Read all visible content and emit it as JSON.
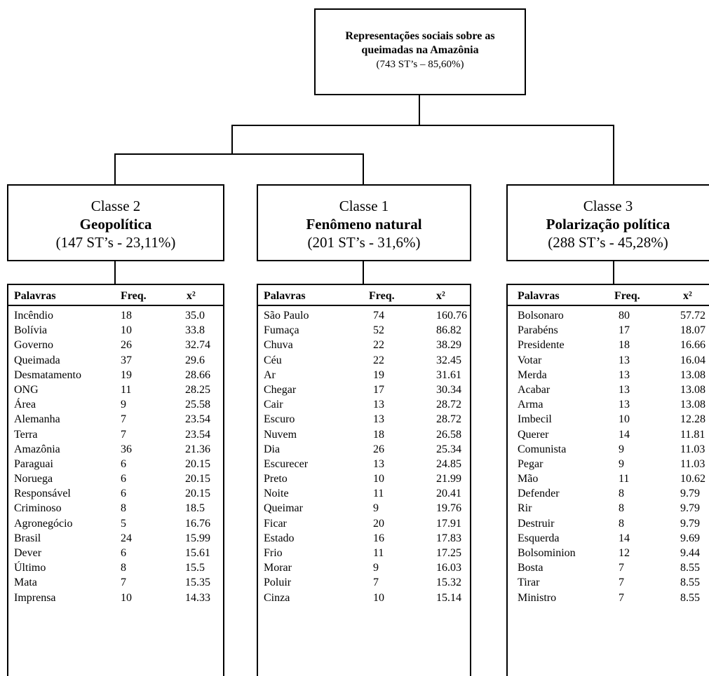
{
  "root": {
    "line1": "Representações sociais sobre as",
    "line2": "queimadas na Amazônia",
    "line3": "(743 ST’s – 85,60%)"
  },
  "classes": [
    {
      "line1": "Classe 2",
      "line2": "Geopolítica",
      "line3": "(147 ST’s - 23,11%)"
    },
    {
      "line1": "Classe 1",
      "line2": "Fenômeno natural",
      "line3": "(201 ST’s - 31,6%)"
    },
    {
      "line1": "Classe 3",
      "line2": "Polarização política",
      "line3": "(288 ST’s - 45,28%)"
    }
  ],
  "headers": {
    "words": "Palavras",
    "freq": "Freq.",
    "chi": "x²"
  },
  "tables": [
    [
      [
        "Incêndio",
        "18",
        "35.0"
      ],
      [
        "Bolívia",
        "10",
        "33.8"
      ],
      [
        "Governo",
        "26",
        "32.74"
      ],
      [
        "Queimada",
        "37",
        "29.6"
      ],
      [
        "Desmatamento",
        "19",
        "28.66"
      ],
      [
        "ONG",
        "11",
        "28.25"
      ],
      [
        "Área",
        "9",
        "25.58"
      ],
      [
        "Alemanha",
        "7",
        "23.54"
      ],
      [
        "Terra",
        "7",
        "23.54"
      ],
      [
        "Amazônia",
        "36",
        "21.36"
      ],
      [
        "Paraguai",
        "6",
        "20.15"
      ],
      [
        "Noruega",
        "6",
        "20.15"
      ],
      [
        "Responsável",
        "6",
        "20.15"
      ],
      [
        "Criminoso",
        "8",
        "18.5"
      ],
      [
        "Agronegócio",
        "5",
        "16.76"
      ],
      [
        "Brasil",
        "24",
        "15.99"
      ],
      [
        "Dever",
        "6",
        "15.61"
      ],
      [
        "Último",
        "8",
        "15.5"
      ],
      [
        "Mata",
        "7",
        "15.35"
      ],
      [
        "Imprensa",
        "10",
        "14.33"
      ]
    ],
    [
      [
        "São Paulo",
        "74",
        "160.76"
      ],
      [
        "Fumaça",
        "52",
        "86.82"
      ],
      [
        "Chuva",
        "22",
        "38.29"
      ],
      [
        "Céu",
        "22",
        "32.45"
      ],
      [
        "Ar",
        "19",
        "31.61"
      ],
      [
        "Chegar",
        "17",
        "30.34"
      ],
      [
        "Cair",
        "13",
        "28.72"
      ],
      [
        "Escuro",
        "13",
        "28.72"
      ],
      [
        "Nuvem",
        "18",
        "26.58"
      ],
      [
        "Dia",
        "26",
        "25.34"
      ],
      [
        "Escurecer",
        "13",
        "24.85"
      ],
      [
        "Preto",
        "10",
        "21.99"
      ],
      [
        "Noite",
        "11",
        "20.41"
      ],
      [
        "Queimar",
        "9",
        "19.76"
      ],
      [
        "Ficar",
        "20",
        "17.91"
      ],
      [
        "Estado",
        "16",
        "17.83"
      ],
      [
        "Frio",
        "11",
        "17.25"
      ],
      [
        "Morar",
        "9",
        "16.03"
      ],
      [
        "Poluir",
        "7",
        "15.32"
      ],
      [
        "Cinza",
        "10",
        "15.14"
      ]
    ],
    [
      [
        "Bolsonaro",
        "80",
        "57.72"
      ],
      [
        "Parabéns",
        "17",
        "18.07"
      ],
      [
        "Presidente",
        "18",
        "16.66"
      ],
      [
        "Votar",
        "13",
        "16.04"
      ],
      [
        "Merda",
        "13",
        "13.08"
      ],
      [
        "Acabar",
        "13",
        "13.08"
      ],
      [
        "Arma",
        "13",
        "13.08"
      ],
      [
        "Imbecil",
        "10",
        "12.28"
      ],
      [
        "Querer",
        "14",
        "11.81"
      ],
      [
        "Comunista",
        "9",
        "11.03"
      ],
      [
        "Pegar",
        "9",
        "11.03"
      ],
      [
        "Mão",
        "11",
        "10.62"
      ],
      [
        "Defender",
        "8",
        "9.79"
      ],
      [
        "Rir",
        "8",
        "9.79"
      ],
      [
        "Destruir",
        "8",
        "9.79"
      ],
      [
        "Esquerda",
        "14",
        "9.69"
      ],
      [
        "Bolsominion",
        "12",
        "9.44"
      ],
      [
        "Bosta",
        "7",
        "8.55"
      ],
      [
        "Tirar",
        "7",
        "8.55"
      ],
      [
        "Ministro",
        "7",
        "8.55"
      ]
    ]
  ]
}
